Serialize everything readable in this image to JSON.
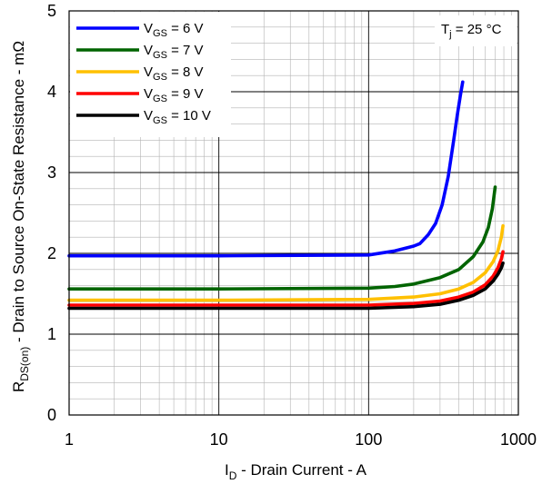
{
  "chart_data": {
    "type": "line",
    "x_scale": "log",
    "xlim": [
      1,
      1000
    ],
    "ylim": [
      0,
      5
    ],
    "grid": true,
    "legend_position": "top-left",
    "x_ticks": [
      "1",
      "10",
      "100",
      "1000"
    ],
    "y_ticks": [
      "0",
      "1",
      "2",
      "3",
      "4",
      "5"
    ],
    "xlabel": {
      "prefix": "I",
      "sub": "D",
      "suffix": " - Drain Current - A"
    },
    "ylabel": {
      "prefix": "R",
      "sub": "DS(on)",
      "suffix": " - Drain to Source On-State Resistance - mΩ"
    },
    "annotation": {
      "prefix": "T",
      "sub": "j",
      "suffix": " = 25 °C"
    },
    "series": [
      {
        "name": "VGS = 6 V",
        "label": {
          "prefix": "V",
          "sub": "GS",
          "suffix": " = 6 V"
        },
        "color": "#0000ff",
        "x": [
          1,
          10,
          100,
          150,
          200,
          220,
          250,
          280,
          310,
          340,
          370,
          390,
          410,
          425
        ],
        "y": [
          1.97,
          1.97,
          1.98,
          2.03,
          2.09,
          2.12,
          2.23,
          2.37,
          2.6,
          2.95,
          3.4,
          3.7,
          3.95,
          4.12
        ]
      },
      {
        "name": "VGS = 7 V",
        "label": {
          "prefix": "V",
          "sub": "GS",
          "suffix": " = 7 V"
        },
        "color": "#006400",
        "x": [
          1,
          10,
          100,
          150,
          200,
          300,
          400,
          500,
          580,
          630,
          670,
          700
        ],
        "y": [
          1.56,
          1.56,
          1.57,
          1.59,
          1.62,
          1.7,
          1.8,
          1.96,
          2.14,
          2.32,
          2.55,
          2.82
        ]
      },
      {
        "name": "VGS = 8 V",
        "label": {
          "prefix": "V",
          "sub": "GS",
          "suffix": " = 8 V"
        },
        "color": "#ffc000",
        "x": [
          1,
          10,
          100,
          200,
          300,
          400,
          500,
          600,
          680,
          730,
          770,
          790
        ],
        "y": [
          1.42,
          1.42,
          1.43,
          1.46,
          1.5,
          1.56,
          1.64,
          1.76,
          1.9,
          2.03,
          2.2,
          2.34
        ]
      },
      {
        "name": "VGS = 9 V",
        "label": {
          "prefix": "V",
          "sub": "GS",
          "suffix": " = 9 V"
        },
        "color": "#ff0000",
        "x": [
          1,
          10,
          100,
          200,
          300,
          400,
          500,
          600,
          680,
          730,
          770,
          790
        ],
        "y": [
          1.36,
          1.36,
          1.36,
          1.38,
          1.41,
          1.46,
          1.52,
          1.61,
          1.72,
          1.82,
          1.93,
          2.02
        ]
      },
      {
        "name": "VGS = 10 V",
        "label": {
          "prefix": "V",
          "sub": "GS",
          "suffix": " = 10 V"
        },
        "color": "#000000",
        "x": [
          1,
          10,
          100,
          200,
          300,
          400,
          500,
          600,
          680,
          730,
          770,
          790
        ],
        "y": [
          1.32,
          1.32,
          1.32,
          1.34,
          1.37,
          1.42,
          1.48,
          1.56,
          1.66,
          1.74,
          1.82,
          1.88
        ]
      }
    ]
  }
}
